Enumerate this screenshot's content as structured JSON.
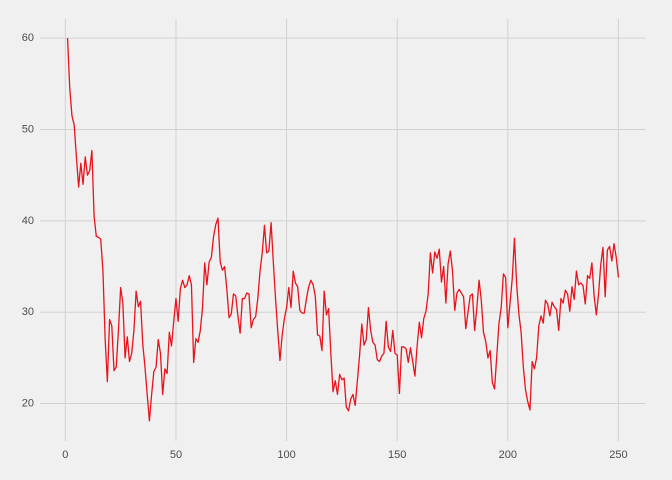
{
  "chart_data": {
    "type": "line",
    "color": "#e8131d",
    "grid": true,
    "x": [
      1,
      2,
      3,
      4,
      5,
      6,
      7,
      8,
      9,
      10,
      11,
      12,
      13,
      14,
      15,
      16,
      17,
      18,
      19,
      20,
      21,
      22,
      23,
      24,
      25,
      26,
      27,
      28,
      29,
      30,
      31,
      32,
      33,
      34,
      35,
      36,
      37,
      38,
      39,
      40,
      41,
      42,
      43,
      44,
      45,
      46,
      47,
      48,
      49,
      50,
      51,
      52,
      53,
      54,
      55,
      56,
      57,
      58,
      59,
      60,
      61,
      62,
      63,
      64,
      65,
      66,
      67,
      68,
      69,
      70,
      71,
      72,
      73,
      74,
      75,
      76,
      77,
      78,
      79,
      80,
      81,
      82,
      83,
      84,
      85,
      86,
      87,
      88,
      89,
      90,
      91,
      92,
      93,
      94,
      95,
      96,
      97,
      98,
      99,
      100,
      101,
      102,
      103,
      104,
      105,
      106,
      107,
      108,
      109,
      110,
      111,
      112,
      113,
      114,
      115,
      116,
      117,
      118,
      119,
      120,
      121,
      122,
      123,
      124,
      125,
      126,
      127,
      128,
      129,
      130,
      131,
      132,
      133,
      134,
      135,
      136,
      137,
      138,
      139,
      140,
      141,
      142,
      143,
      144,
      145,
      146,
      147,
      148,
      149,
      150,
      151,
      152,
      153,
      154,
      155,
      156,
      157,
      158,
      159,
      160,
      161,
      162,
      163,
      164,
      165,
      166,
      167,
      168,
      169,
      170,
      171,
      172,
      173,
      174,
      175,
      176,
      177,
      178,
      179,
      180,
      181,
      182,
      183,
      184,
      185,
      186,
      187,
      188,
      189,
      190,
      191,
      192,
      193,
      194,
      195,
      196,
      197,
      198,
      199,
      200,
      201,
      202,
      203,
      204,
      205,
      206,
      207,
      208,
      209,
      210,
      211,
      212,
      213,
      214,
      215,
      216,
      217,
      218,
      219,
      220,
      221,
      222,
      223,
      224,
      225,
      226,
      227,
      228,
      229,
      230,
      231,
      232,
      233,
      234,
      235,
      236,
      237,
      238,
      239,
      240,
      241,
      242,
      243,
      244,
      245,
      246,
      247,
      248,
      249,
      250
    ],
    "values": [
      60,
      54.5,
      51.5,
      50.5,
      47,
      43.7,
      46.3,
      44,
      47,
      45,
      45.5,
      47.7,
      40.5,
      38.3,
      38.2,
      38,
      34.5,
      27,
      22.4,
      29.2,
      28.5,
      23.6,
      24,
      28,
      32.7,
      31,
      25,
      27.3,
      24.6,
      25.5,
      28,
      32.3,
      30.6,
      31.2,
      26.5,
      24,
      21,
      18.1,
      21,
      23.5,
      24,
      27,
      25.5,
      21,
      23.8,
      23.3,
      27.8,
      26.3,
      29,
      31.5,
      29,
      32.6,
      33.5,
      32.7,
      33,
      34,
      33,
      24.5,
      27.1,
      26.7,
      28,
      30.5,
      35.4,
      33,
      35.5,
      36,
      38.3,
      39.6,
      40.3,
      35.5,
      34.6,
      35,
      32.5,
      29.4,
      29.8,
      32,
      31.8,
      29.6,
      27.7,
      31.5,
      31.5,
      32.1,
      32,
      28.3,
      29.2,
      29.5,
      31.5,
      34.5,
      36.5,
      39.5,
      36.5,
      36.7,
      39.8,
      35.5,
      31.5,
      28,
      24.7,
      27.5,
      29.3,
      30.5,
      32.7,
      30.5,
      34.5,
      33.2,
      32.8,
      30.2,
      29.9,
      29.9,
      31.5,
      32.8,
      33.5,
      33,
      31.7,
      27.5,
      27.4,
      25.8,
      32.3,
      29.7,
      30.4,
      25.5,
      21.3,
      22.5,
      21,
      23.2,
      22.6,
      22.8,
      19.6,
      19.2,
      20.5,
      21,
      19.8,
      22.5,
      25.3,
      28.7,
      26.4,
      27,
      30.5,
      28,
      26.7,
      26.4,
      24.8,
      24.6,
      25.2,
      25.5,
      29,
      26.2,
      25.7,
      28,
      25.5,
      25.3,
      21.1,
      26.2,
      26.2,
      26,
      24.5,
      26.1,
      24.6,
      23,
      26.3,
      28.9,
      27.2,
      29.3,
      30.1,
      32,
      36.5,
      34.3,
      36.6,
      35.9,
      36.9,
      33.3,
      35,
      31,
      35.3,
      36.7,
      34.5,
      30.2,
      32.1,
      32.5,
      32.1,
      31.7,
      28.2,
      30,
      31.8,
      32,
      28,
      30.5,
      33.5,
      31.3,
      27.8,
      26.8,
      25,
      25.8,
      22.3,
      21.6,
      25.2,
      28.8,
      30.5,
      34.2,
      33.8,
      28.3,
      31,
      33.7,
      38.1,
      33,
      29.8,
      27.8,
      24,
      21.5,
      20.2,
      19.3,
      24.6,
      23.8,
      25,
      28.5,
      29.6,
      28.8,
      31.3,
      30.9,
      29.6,
      31.1,
      30.6,
      30.3,
      28,
      31.5,
      31,
      32.4,
      32,
      30.1,
      32.8,
      31.4,
      34.5,
      33,
      33.2,
      32.9,
      30.9,
      34,
      33.7,
      35.4,
      31.8,
      29.7,
      32,
      35.2,
      37.1,
      31.7,
      36.8,
      37.2,
      35.6,
      37.5,
      36,
      33.8
    ],
    "xlim": [
      -11.45,
      262.45
    ],
    "xticks": [
      0,
      50,
      100,
      150,
      200,
      250
    ],
    "ylim": [
      15.9,
      62.1
    ],
    "yticks": [
      20,
      30,
      40,
      50,
      60
    ]
  }
}
